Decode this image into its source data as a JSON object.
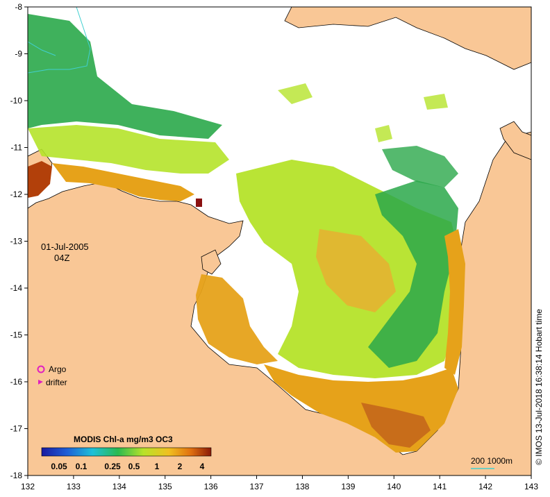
{
  "map": {
    "date_label": "01-Jul-2005",
    "time_label": "04Z",
    "credit": "© IMOS 13-Jul-2018 16:38:14 Hobart time",
    "x_ticks": [
      "132",
      "133",
      "134",
      "135",
      "136",
      "137",
      "138",
      "139",
      "140",
      "141",
      "142",
      "143"
    ],
    "y_ticks": [
      "-8",
      "-9",
      "-10",
      "-11",
      "-12",
      "-13",
      "-14",
      "-15",
      "-16",
      "-17",
      "-18"
    ],
    "legend": {
      "argo_label": "Argo",
      "drifter_label": "drifter"
    },
    "colorbar": {
      "title": "MODIS Chl-a mg/m3 OC3",
      "labels": [
        "0.05",
        "0.1",
        "0.25",
        "0.5",
        "1",
        "2",
        "4"
      ]
    },
    "scale_label": "200  1000m",
    "colors": {
      "land": "#f9c796",
      "no_data": "#ffffff",
      "low_chl": "#2aa84a",
      "mid_chl": "#b5e32a",
      "high_chl": "#e6a21a",
      "very_high_chl": "#b2400a",
      "argo": "#e020c0",
      "bathymetry": "#40d0d0"
    }
  }
}
